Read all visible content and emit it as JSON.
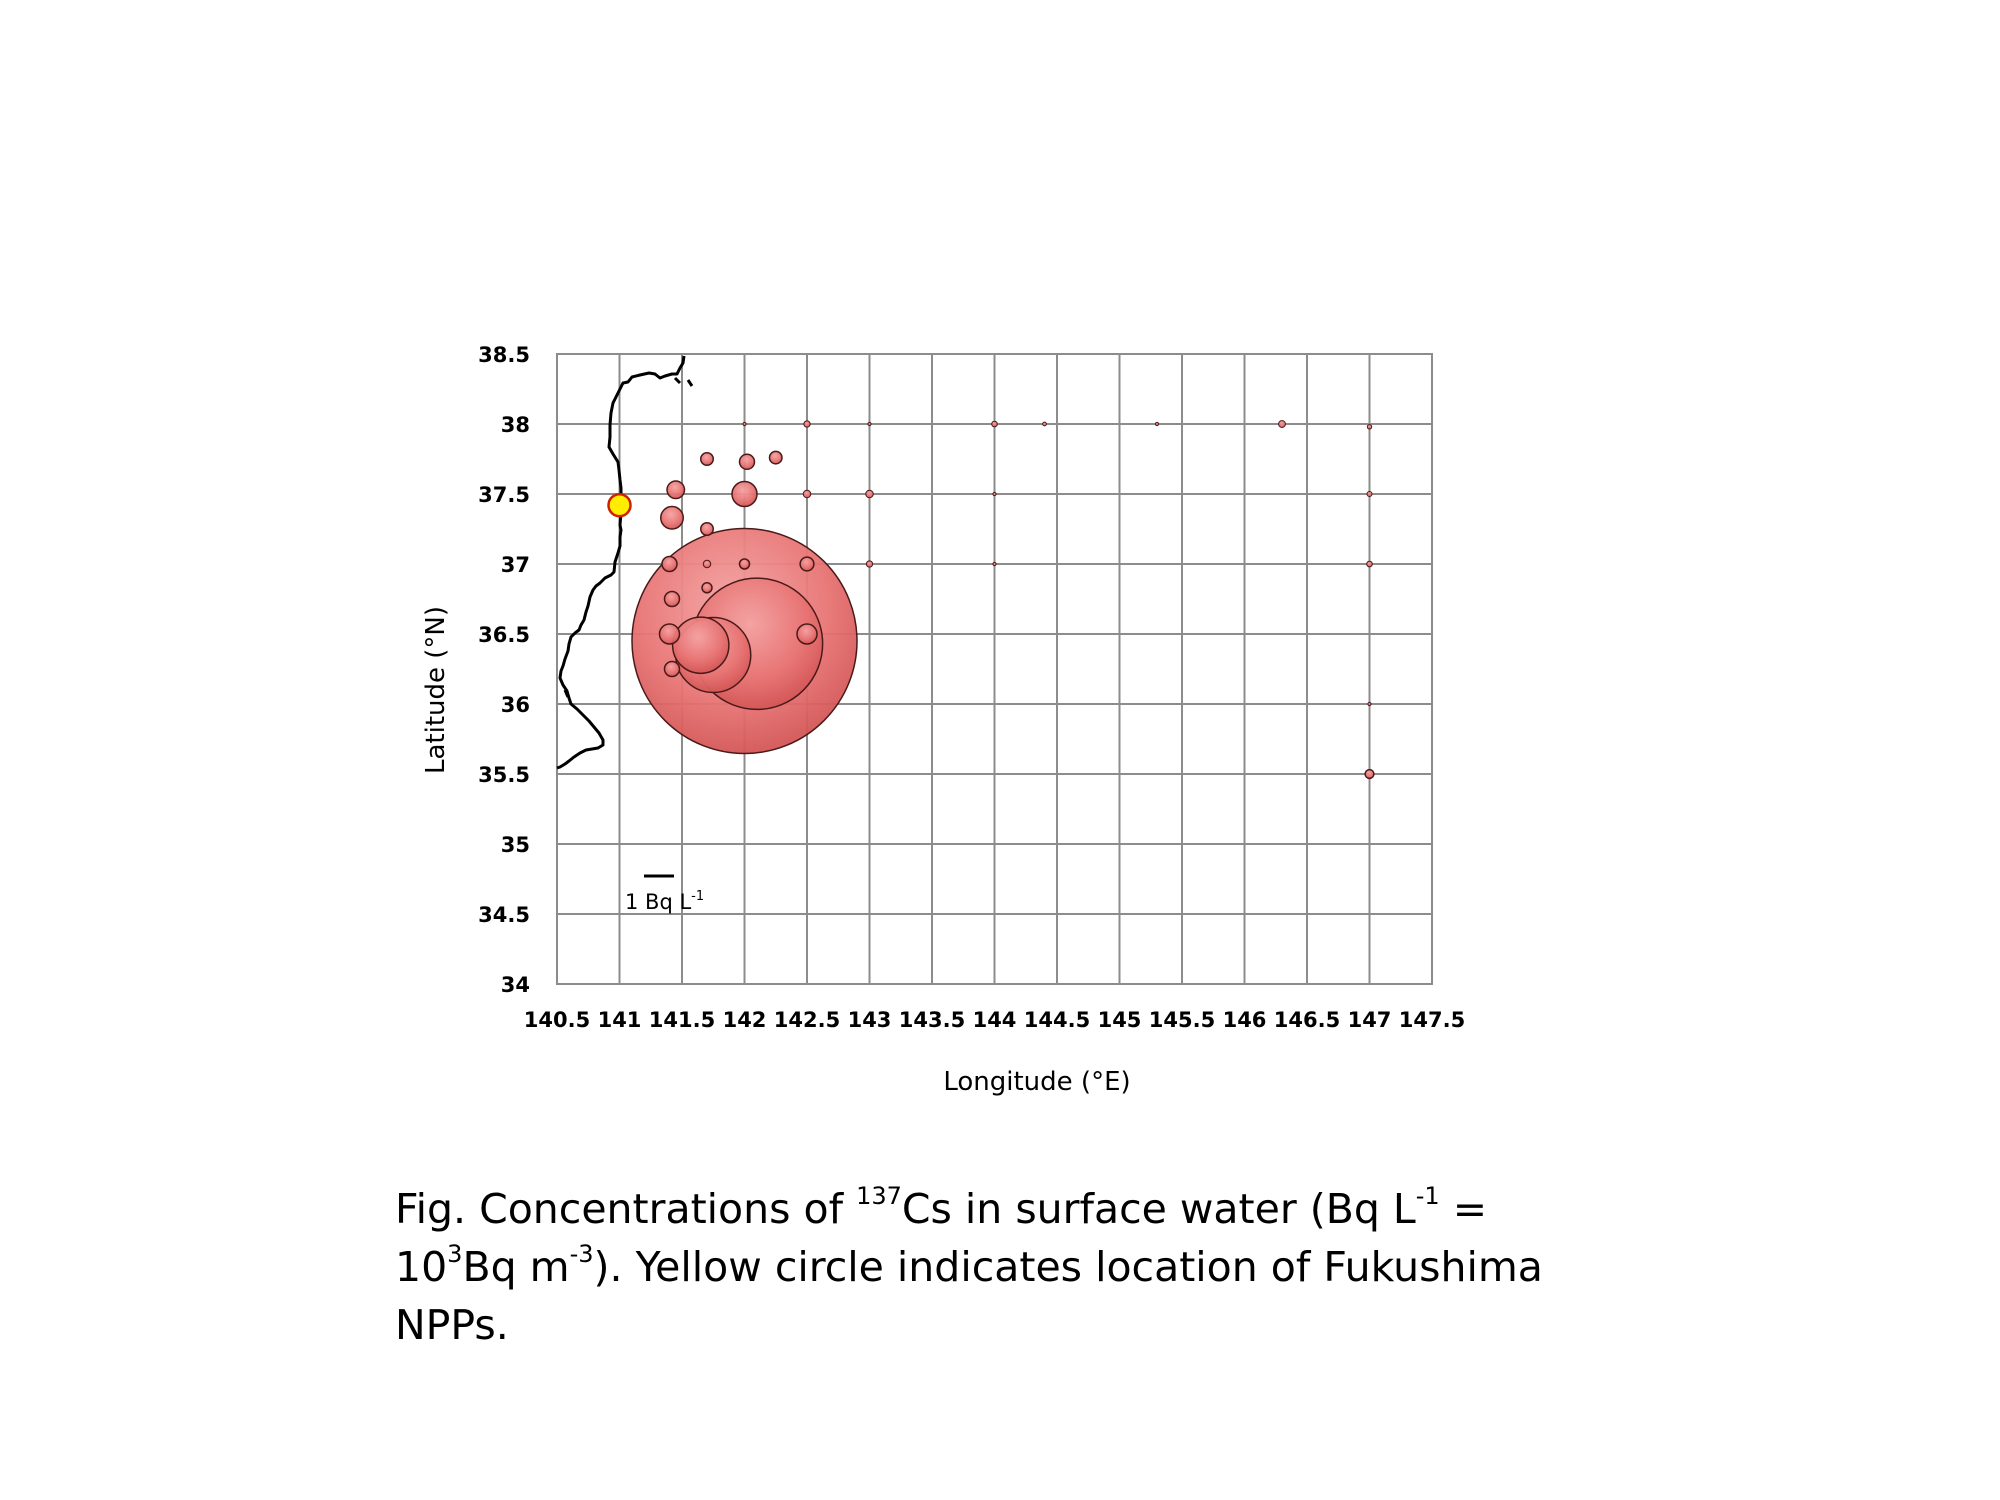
{
  "chart_data": {
    "type": "scatter",
    "subtype": "bubble map",
    "xlabel": "Longitude (°E)",
    "ylabel": "Latitude (°N)",
    "xlim": [
      140.5,
      147.5
    ],
    "ylim": [
      34,
      38.5
    ],
    "x_ticks": [
      "140.5",
      "141",
      "141.5",
      "142",
      "142.5",
      "143",
      "143.5",
      "144",
      "144.5",
      "145",
      "145.5",
      "146",
      "146.5",
      "147",
      "147.5"
    ],
    "y_ticks": [
      "38.5",
      "38",
      "37.5",
      "37",
      "36.5",
      "36",
      "35.5",
      "35",
      "34.5",
      "34"
    ],
    "grid": true,
    "legend": "none",
    "scale_bar": {
      "text": "1 Bq L",
      "sup": "-1",
      "value": 1
    },
    "colors": {
      "bubble": "#e87474",
      "bubble_edge": "#4a1a1a",
      "site": "#ffee00",
      "site_edge": "#cc2200",
      "grid": "#8c8c8c"
    },
    "site": {
      "name": "Fukushima NPPs",
      "x": 141.0,
      "y": 37.42
    },
    "points": [
      {
        "x": 142.0,
        "y": 36.45,
        "r": 1.8
      },
      {
        "x": 142.1,
        "y": 36.43,
        "r": 1.05
      },
      {
        "x": 141.75,
        "y": 36.35,
        "r": 0.6
      },
      {
        "x": 141.65,
        "y": 36.42,
        "r": 0.45
      },
      {
        "x": 142.5,
        "y": 36.5,
        "r": 0.16
      },
      {
        "x": 141.4,
        "y": 36.5,
        "r": 0.16
      },
      {
        "x": 141.42,
        "y": 36.25,
        "r": 0.12
      },
      {
        "x": 141.42,
        "y": 36.75,
        "r": 0.12
      },
      {
        "x": 141.7,
        "y": 36.83,
        "r": 0.08
      },
      {
        "x": 141.4,
        "y": 37.0,
        "r": 0.12
      },
      {
        "x": 141.7,
        "y": 37.0,
        "r": 0.06
      },
      {
        "x": 142.0,
        "y": 37.0,
        "r": 0.08
      },
      {
        "x": 142.5,
        "y": 37.0,
        "r": 0.11
      },
      {
        "x": 143.0,
        "y": 37.0,
        "r": 0.05
      },
      {
        "x": 144.0,
        "y": 37.0,
        "r": 0.025
      },
      {
        "x": 147.0,
        "y": 37.0,
        "r": 0.045
      },
      {
        "x": 141.42,
        "y": 37.33,
        "r": 0.18
      },
      {
        "x": 141.7,
        "y": 37.25,
        "r": 0.1
      },
      {
        "x": 141.45,
        "y": 37.53,
        "r": 0.14
      },
      {
        "x": 142.0,
        "y": 37.5,
        "r": 0.2
      },
      {
        "x": 142.5,
        "y": 37.5,
        "r": 0.06
      },
      {
        "x": 143.0,
        "y": 37.5,
        "r": 0.06
      },
      {
        "x": 144.0,
        "y": 37.5,
        "r": 0.025
      },
      {
        "x": 147.0,
        "y": 37.5,
        "r": 0.04
      },
      {
        "x": 141.7,
        "y": 37.75,
        "r": 0.1
      },
      {
        "x": 142.02,
        "y": 37.73,
        "r": 0.12
      },
      {
        "x": 142.25,
        "y": 37.76,
        "r": 0.1
      },
      {
        "x": 142.0,
        "y": 38.0,
        "r": 0.015
      },
      {
        "x": 142.5,
        "y": 38.0,
        "r": 0.05
      },
      {
        "x": 143.0,
        "y": 38.0,
        "r": 0.012
      },
      {
        "x": 144.0,
        "y": 38.0,
        "r": 0.045
      },
      {
        "x": 144.4,
        "y": 38.0,
        "r": 0.03
      },
      {
        "x": 145.3,
        "y": 38.0,
        "r": 0.025
      },
      {
        "x": 146.3,
        "y": 38.0,
        "r": 0.055
      },
      {
        "x": 147.0,
        "y": 37.98,
        "r": 0.035
      },
      {
        "x": 147.0,
        "y": 36.0,
        "r": 0.012
      },
      {
        "x": 147.0,
        "y": 35.5,
        "r": 0.07
      }
    ]
  },
  "caption": {
    "prefix": "Fig. Concentrations of ",
    "sup_isotope": "137",
    "text2": "Cs in surface water (Bq L",
    "sup_unit": "-1",
    "text3": " = ",
    "text4": "10",
    "sup_exp": "3",
    "text5": "Bq m",
    "sup_unit2": "-3",
    "text6": "). Yellow circle indicates location of Fukushima NPPs."
  }
}
